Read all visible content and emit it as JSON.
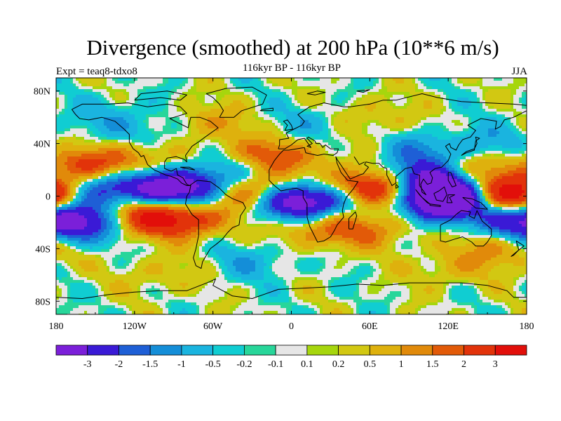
{
  "figure": {
    "title": "Divergence (smoothed) at 200 hPa (10**6 m/s)",
    "experiment": "Expt = teaq8-tdxo8",
    "period": "116kyr BP - 116kyr BP",
    "season": "JJA"
  },
  "chart_data": {
    "type": "heatmap",
    "field": "200 hPa divergence (smoothed)",
    "units": "10**6 m/s",
    "lon_range": [
      -180,
      180
    ],
    "lat_range": [
      -90,
      90
    ],
    "x_ticks": [
      "180",
      "120W",
      "60W",
      "0",
      "60E",
      "120E",
      "180"
    ],
    "x_tick_values": [
      -180,
      -120,
      -60,
      0,
      60,
      120,
      180
    ],
    "y_ticks": [
      "80N",
      "40N",
      "0",
      "40S",
      "80S"
    ],
    "y_tick_values": [
      80,
      40,
      0,
      -40,
      -80
    ],
    "colorbar": {
      "labels": [
        "-3",
        "-2",
        "-1.5",
        "-1",
        "-0.5",
        "-0.2",
        "-0.1",
        "0.1",
        "0.2",
        "0.5",
        "1",
        "1.5",
        "2",
        "3"
      ],
      "levels": [
        -3,
        -2,
        -1.5,
        -1,
        -0.5,
        -0.2,
        -0.1,
        0.1,
        0.2,
        0.5,
        1,
        1.5,
        2,
        3
      ],
      "colors": [
        "#7b1fd9",
        "#3a1ad6",
        "#1e5fd6",
        "#148ed8",
        "#1ab4df",
        "#10cdd2",
        "#28d69a",
        "#e6e6e6",
        "#a6d60d",
        "#d2c812",
        "#deb10d",
        "#e18a0a",
        "#e25a08",
        "#e2330a",
        "#e20f0a"
      ]
    },
    "anomalies": [
      {
        "lon": -150,
        "lat": 5,
        "value": -3
      },
      {
        "lon": -100,
        "lat": 6,
        "value": -3.2
      },
      {
        "lon": -65,
        "lat": 5,
        "value": -3
      },
      {
        "lon": -3,
        "lat": -3,
        "value": -3.4
      },
      {
        "lon": 25,
        "lat": -3,
        "value": -2.5
      },
      {
        "lon": 92,
        "lat": 12,
        "value": -2.3
      },
      {
        "lon": 112,
        "lat": 8,
        "value": -2.6
      },
      {
        "lon": 125,
        "lat": -3,
        "value": -3.2
      },
      {
        "lon": 108,
        "lat": -5,
        "value": -2.5
      },
      {
        "lon": 175,
        "lat": -18,
        "value": -2.2
      },
      {
        "lon": -160,
        "lat": -22,
        "value": -2.0
      },
      {
        "lon": -175,
        "lat": -12,
        "value": -1.5
      },
      {
        "lon": -45,
        "lat": 20,
        "value": -1.2
      },
      {
        "lon": -30,
        "lat": -50,
        "value": -0.8
      },
      {
        "lon": 100,
        "lat": 33,
        "value": -1.2
      },
      {
        "lon": 150,
        "lat": 40,
        "value": -0.9
      },
      {
        "lon": -110,
        "lat": 48,
        "value": -0.8
      },
      {
        "lon": 20,
        "lat": 55,
        "value": -0.8
      },
      {
        "lon": 75,
        "lat": 5,
        "value": 3.4
      },
      {
        "lon": 165,
        "lat": 0,
        "value": 3
      },
      {
        "lon": -178,
        "lat": 0,
        "value": 2.6
      },
      {
        "lon": -110,
        "lat": -15,
        "value": 2.7
      },
      {
        "lon": -80,
        "lat": -18,
        "value": 2.2
      },
      {
        "lon": -45,
        "lat": 3,
        "value": 2.2
      },
      {
        "lon": -20,
        "lat": 3,
        "value": 1.8
      },
      {
        "lon": 45,
        "lat": 8,
        "value": 1.8
      },
      {
        "lon": 20,
        "lat": -25,
        "value": 1.4
      },
      {
        "lon": 60,
        "lat": -25,
        "value": 1.4
      },
      {
        "lon": -160,
        "lat": 22,
        "value": 1.8
      },
      {
        "lon": -125,
        "lat": 28,
        "value": 1.5
      },
      {
        "lon": -30,
        "lat": 30,
        "value": 1.3
      },
      {
        "lon": 0,
        "lat": 30,
        "value": 1.2
      },
      {
        "lon": 140,
        "lat": 20,
        "value": 1.2
      },
      {
        "lon": 160,
        "lat": -40,
        "value": 1.2
      },
      {
        "lon": -65,
        "lat": 55,
        "value": 1.0
      },
      {
        "lon": 60,
        "lat": 60,
        "value": 0.8
      },
      {
        "lon": -100,
        "lat": -60,
        "value": 0.6
      },
      {
        "lon": 120,
        "lat": -55,
        "value": 0.7
      },
      {
        "lon": -140,
        "lat": 62,
        "value": -0.7
      }
    ]
  }
}
